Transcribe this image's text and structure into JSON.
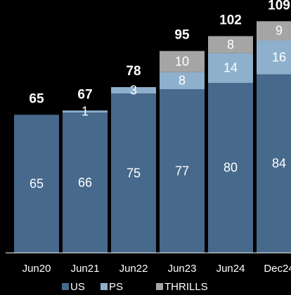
{
  "chart_data": {
    "type": "stacked_bar",
    "categories": [
      "Jun20",
      "Jun21",
      "Jun22",
      "Jun23",
      "Jun24",
      "Dec24"
    ],
    "series": [
      {
        "name": "US",
        "color": "#47698b",
        "values": [
          65,
          66,
          75,
          77,
          80,
          84
        ]
      },
      {
        "name": "PS",
        "color": "#8eb0cd",
        "values": [
          null,
          1,
          3,
          8,
          14,
          16
        ]
      },
      {
        "name": "THRILLS",
        "color": "#a5a5a5",
        "values": [
          null,
          null,
          null,
          10,
          8,
          9
        ]
      }
    ],
    "totals": [
      65,
      67,
      78,
      95,
      102,
      109
    ],
    "ylim": [
      0,
      119
    ]
  }
}
